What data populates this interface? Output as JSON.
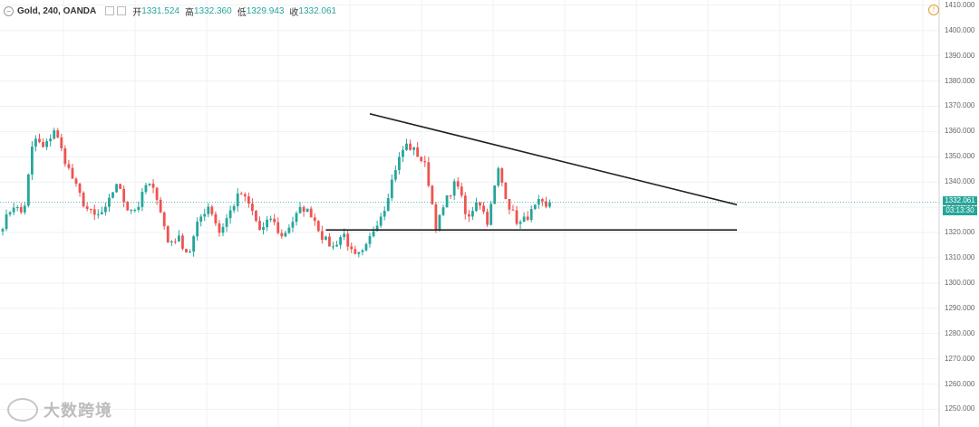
{
  "header": {
    "symbol": "Gold, 240, OANDA",
    "open_label": "开",
    "open": "1331.524",
    "high_label": "高",
    "high": "1332.360",
    "low_label": "低",
    "low": "1329.943",
    "close_label": "收",
    "close": "1332.061"
  },
  "price_tag": {
    "price": "1332.061",
    "timer": "03:13:30"
  },
  "watermark": {
    "text": "大数跨境"
  },
  "colors": {
    "up": "#26a69a",
    "down": "#ef5350",
    "grid": "#eef1f4",
    "trendline": "#222222",
    "last_price_line": "#26a69a"
  },
  "chart_data": {
    "type": "candlestick",
    "title": "Gold, 240, OANDA",
    "ylim": [
      1248,
      1411
    ],
    "yticks": [
      1250,
      1260,
      1270,
      1280,
      1290,
      1300,
      1310,
      1320,
      1330,
      1340,
      1350,
      1360,
      1370,
      1380,
      1390,
      1400,
      1410
    ],
    "tick_labels": [
      "1250.000",
      "1260.000",
      "1270.000",
      "1280.000",
      "1290.000",
      "1300.000",
      "1310.000",
      "1320.000",
      "1330.000",
      "1340.000",
      "1350.000",
      "1360.000",
      "1370.000",
      "1380.000",
      "1390.000",
      "1400.000",
      "1410.000"
    ],
    "candles_count": 150,
    "price_path": [
      1323,
      1331,
      1327,
      1358,
      1353,
      1361,
      1349,
      1339,
      1330,
      1326,
      1329,
      1340,
      1330,
      1329,
      1340,
      1334,
      1316,
      1318,
      1311,
      1325,
      1331,
      1320,
      1328,
      1336,
      1330,
      1320,
      1326,
      1318,
      1324,
      1330,
      1327,
      1318,
      1314,
      1320,
      1310,
      1312,
      1322,
      1330,
      1345,
      1355,
      1352,
      1346,
      1322,
      1333,
      1341,
      1324,
      1334,
      1324,
      1345,
      1331,
      1323,
      1327,
      1332,
      1328
    ],
    "last_price": 1332.061,
    "grid": true,
    "drawings": [
      {
        "type": "trendline",
        "name": "descending-resistance",
        "from": [
          100,
          1367
        ],
        "to": [
          200,
          1331
        ]
      },
      {
        "type": "horizontal",
        "name": "support",
        "from": [
          88,
          1321
        ],
        "to": [
          200,
          1321
        ]
      }
    ]
  }
}
